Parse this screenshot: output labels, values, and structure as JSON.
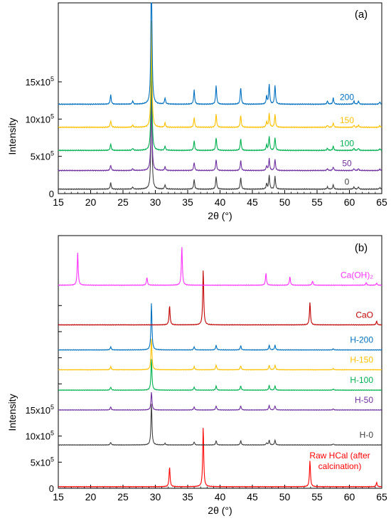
{
  "chart_data": [
    {
      "type": "line",
      "panel_label": "(a)",
      "xlabel": "2θ (°)",
      "ylabel": "Intensity",
      "xlim": [
        15,
        65
      ],
      "x_ticks": [
        "15",
        "20",
        "25",
        "30",
        "35",
        "40",
        "45",
        "50",
        "55",
        "60",
        "65"
      ],
      "y_ticks": [
        {
          "base": "0",
          "exp": ""
        },
        {
          "base": "5x10",
          "exp": "5"
        },
        {
          "base": "10x10",
          "exp": "5"
        },
        {
          "base": "15x10",
          "exp": "5"
        }
      ],
      "y_tick_values": [
        0,
        500000,
        1000000,
        1500000
      ],
      "y_max": 2560000,
      "grid": false,
      "peaks": [
        {
          "x": 23.1,
          "h": 0.06
        },
        {
          "x": 26.5,
          "h": 0.02
        },
        {
          "x": 29.4,
          "h": 1.0
        },
        {
          "x": 31.5,
          "h": 0.04
        },
        {
          "x": 36.0,
          "h": 0.09
        },
        {
          "x": 39.4,
          "h": 0.12
        },
        {
          "x": 43.2,
          "h": 0.11
        },
        {
          "x": 47.2,
          "h": 0.05
        },
        {
          "x": 47.6,
          "h": 0.13
        },
        {
          "x": 48.5,
          "h": 0.12
        },
        {
          "x": 56.6,
          "h": 0.02
        },
        {
          "x": 57.5,
          "h": 0.04
        },
        {
          "x": 60.7,
          "h": 0.02
        },
        {
          "x": 61.4,
          "h": 0.02
        },
        {
          "x": 64.7,
          "h": 0.015
        }
      ],
      "series": [
        {
          "name": "0",
          "color": "#404040",
          "offset": 60000,
          "scale": 1.0
        },
        {
          "name": "50",
          "color": "#7030A0",
          "offset": 310000,
          "scale": 0.85
        },
        {
          "name": "100",
          "color": "#00B050",
          "offset": 580000,
          "scale": 1.0
        },
        {
          "name": "150",
          "color": "#FFC000",
          "offset": 890000,
          "scale": 1.0
        },
        {
          "name": "200",
          "color": "#0070C0",
          "offset": 1200000,
          "scale": 1.45
        }
      ],
      "peak_height_max": 1450000
    },
    {
      "type": "line",
      "panel_label": "(b)",
      "xlabel": "2θ (°)",
      "ylabel": "Intensity",
      "xlim": [
        15,
        65
      ],
      "x_ticks": [
        "15",
        "20",
        "25",
        "30",
        "35",
        "40",
        "45",
        "50",
        "55",
        "60",
        "65"
      ],
      "y_ticks": [
        {
          "base": "0",
          "exp": ""
        },
        {
          "base": "5x10",
          "exp": "5"
        },
        {
          "base": "10x10",
          "exp": "5"
        },
        {
          "base": "15x10",
          "exp": "5"
        }
      ],
      "y_tick_values": [
        0,
        500000,
        1000000,
        1500000
      ],
      "y_max": 4840000,
      "grid": false,
      "series": [
        {
          "name": "Raw HCal (after calcination)",
          "color": "#FF0000",
          "offset": 30000,
          "peaks": [
            {
              "x": 32.2,
              "h": 380000
            },
            {
              "x": 37.4,
              "h": 1150000
            },
            {
              "x": 53.9,
              "h": 500000
            },
            {
              "x": 64.2,
              "h": 80000
            }
          ]
        },
        {
          "name": "H-0",
          "color": "#404040",
          "offset": 830000,
          "peaks": [
            {
              "x": 23.1,
              "h": 50000
            },
            {
              "x": 29.4,
              "h": 800000
            },
            {
              "x": 31.5,
              "h": 30000
            },
            {
              "x": 36.0,
              "h": 60000
            },
            {
              "x": 39.4,
              "h": 80000
            },
            {
              "x": 43.2,
              "h": 80000
            },
            {
              "x": 47.2,
              "h": 40000
            },
            {
              "x": 47.6,
              "h": 90000
            },
            {
              "x": 48.5,
              "h": 90000
            },
            {
              "x": 57.5,
              "h": 20000
            }
          ]
        },
        {
          "name": "H-50",
          "color": "#7030A0",
          "offset": 1500000,
          "peaks": [
            {
              "x": 23.1,
              "h": 60000
            },
            {
              "x": 29.4,
              "h": 350000
            },
            {
              "x": 36.0,
              "h": 60000
            },
            {
              "x": 39.4,
              "h": 80000
            },
            {
              "x": 43.2,
              "h": 80000
            },
            {
              "x": 47.6,
              "h": 90000
            },
            {
              "x": 48.5,
              "h": 80000
            },
            {
              "x": 57.5,
              "h": 20000
            }
          ]
        },
        {
          "name": "H-100",
          "color": "#00B050",
          "offset": 1880000,
          "peaks": [
            {
              "x": 23.1,
              "h": 60000
            },
            {
              "x": 29.4,
              "h": 600000
            },
            {
              "x": 36.0,
              "h": 60000
            },
            {
              "x": 39.4,
              "h": 80000
            },
            {
              "x": 43.2,
              "h": 80000
            },
            {
              "x": 47.6,
              "h": 90000
            },
            {
              "x": 48.5,
              "h": 80000
            },
            {
              "x": 57.5,
              "h": 20000
            }
          ]
        },
        {
          "name": "H-150",
          "color": "#FFC000",
          "offset": 2270000,
          "peaks": [
            {
              "x": 23.1,
              "h": 60000
            },
            {
              "x": 29.4,
              "h": 600000
            },
            {
              "x": 36.0,
              "h": 60000
            },
            {
              "x": 39.4,
              "h": 90000
            },
            {
              "x": 43.2,
              "h": 80000
            },
            {
              "x": 47.6,
              "h": 90000
            },
            {
              "x": 48.5,
              "h": 90000
            },
            {
              "x": 57.5,
              "h": 20000
            }
          ]
        },
        {
          "name": "H-200",
          "color": "#0070C0",
          "offset": 2650000,
          "peaks": [
            {
              "x": 23.1,
              "h": 60000
            },
            {
              "x": 29.4,
              "h": 900000
            },
            {
              "x": 36.0,
              "h": 60000
            },
            {
              "x": 39.4,
              "h": 90000
            },
            {
              "x": 43.2,
              "h": 80000
            },
            {
              "x": 47.6,
              "h": 90000
            },
            {
              "x": 48.5,
              "h": 90000
            },
            {
              "x": 57.5,
              "h": 20000
            }
          ]
        },
        {
          "name": "CaO",
          "color": "#C00000",
          "offset": 3130000,
          "peaks": [
            {
              "x": 32.2,
              "h": 370000
            },
            {
              "x": 37.4,
              "h": 1060000
            },
            {
              "x": 53.9,
              "h": 430000
            },
            {
              "x": 64.2,
              "h": 70000
            }
          ]
        },
        {
          "name": "Ca(OH)₂",
          "color": "#FF33FF",
          "offset": 3890000,
          "peaks": [
            {
              "x": 18.0,
              "h": 620000
            },
            {
              "x": 28.7,
              "h": 150000
            },
            {
              "x": 34.1,
              "h": 740000
            },
            {
              "x": 47.1,
              "h": 230000
            },
            {
              "x": 50.8,
              "h": 160000
            },
            {
              "x": 54.3,
              "h": 80000
            },
            {
              "x": 62.6,
              "h": 50000
            },
            {
              "x": 64.2,
              "h": 40000
            }
          ]
        }
      ]
    }
  ]
}
